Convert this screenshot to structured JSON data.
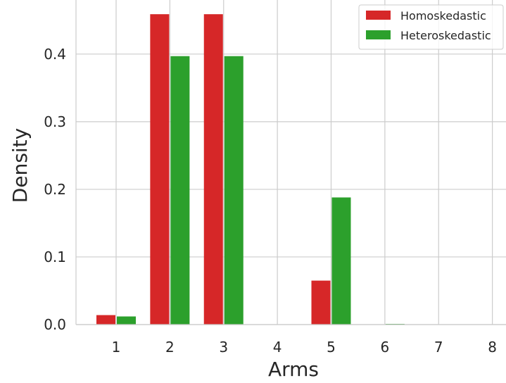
{
  "chart_data": {
    "type": "bar",
    "categories": [
      "1",
      "2",
      "3",
      "4",
      "5",
      "6",
      "7",
      "8"
    ],
    "series": [
      {
        "name": "Homoskedastic",
        "color": "#d62728",
        "values": [
          0.014,
          0.459,
          0.459,
          0.0,
          0.065,
          0.0,
          0.0,
          0.0
        ]
      },
      {
        "name": "Heteroskedastic",
        "color": "#2ca02c",
        "values": [
          0.012,
          0.397,
          0.397,
          0.0,
          0.188,
          0.001,
          0.0,
          0.0
        ]
      }
    ],
    "xlabel": "Arms",
    "ylabel": "Density",
    "yticks": [
      "0.0",
      "0.1",
      "0.2",
      "0.3",
      "0.4"
    ],
    "ylim": [
      0,
      0.48
    ],
    "grid": true,
    "legend_position": "top-right"
  }
}
